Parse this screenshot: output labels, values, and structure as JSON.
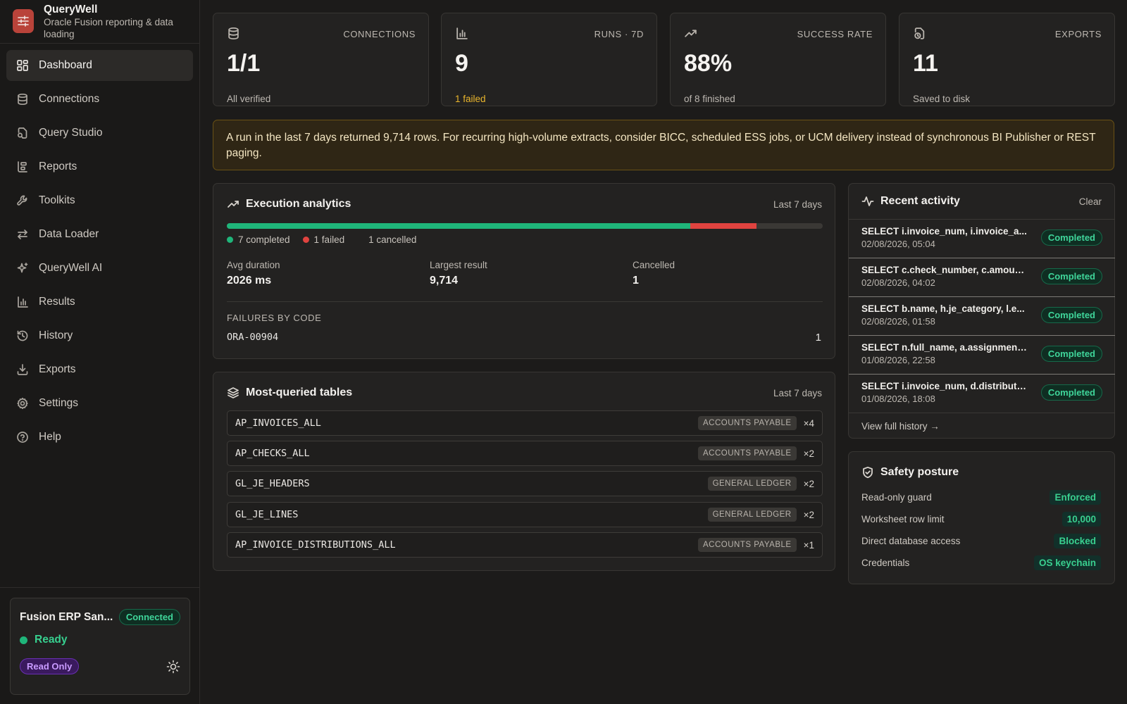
{
  "app": {
    "name": "QueryWell",
    "subtitle": "Oracle Fusion reporting & data loading"
  },
  "nav": [
    {
      "label": "Dashboard",
      "icon": "dashboard-icon",
      "active": true
    },
    {
      "label": "Connections",
      "icon": "database-icon"
    },
    {
      "label": "Query Studio",
      "icon": "query-file-icon"
    },
    {
      "label": "Reports",
      "icon": "reports-icon"
    },
    {
      "label": "Toolkits",
      "icon": "wrench-icon"
    },
    {
      "label": "Data Loader",
      "icon": "arrows-swap-icon"
    },
    {
      "label": "QueryWell AI",
      "icon": "sparkle-icon"
    },
    {
      "label": "Results",
      "icon": "bar-chart-icon"
    },
    {
      "label": "History",
      "icon": "history-icon"
    },
    {
      "label": "Exports",
      "icon": "download-icon"
    },
    {
      "label": "Settings",
      "icon": "gear-icon"
    },
    {
      "label": "Help",
      "icon": "help-icon"
    }
  ],
  "connection": {
    "name": "Fusion ERP San...",
    "status_badge": "Connected",
    "state": "Ready",
    "mode": "Read Only"
  },
  "stats": [
    {
      "label": "CONNECTIONS",
      "value": "1/1",
      "sub": "All verified",
      "icon": "database-icon"
    },
    {
      "label": "RUNS · 7D",
      "value": "9",
      "sub": "1 failed",
      "icon": "bar-chart-icon"
    },
    {
      "label": "SUCCESS RATE",
      "value": "88%",
      "sub": "of 8 finished",
      "icon": "trend-up-icon"
    },
    {
      "label": "EXPORTS",
      "value": "11",
      "sub": "Saved to disk",
      "icon": "file-clock-icon"
    }
  ],
  "banner": "A run in the last 7 days returned 9,714 rows. For recurring high-volume extracts, consider BICC, scheduled ESS jobs, or UCM delivery instead of synchronous BI Publisher or REST paging.",
  "analytics": {
    "title": "Execution analytics",
    "period": "Last 7 days",
    "completed": 7,
    "failed": 1,
    "cancelled_count": 1,
    "legend_completed": "7 completed",
    "legend_failed": "1 failed",
    "legend_cancelled": "1 cancelled",
    "avg_label": "Avg duration",
    "avg_value": "2026 ms",
    "largest_label": "Largest result",
    "largest_value": "9,714",
    "cancelled_label": "Cancelled",
    "cancelled_value": "1",
    "failures_heading": "FAILURES BY CODE",
    "failures": [
      {
        "code": "ORA-00904",
        "count": "1"
      }
    ],
    "colors": {
      "completed": "#1fb57a",
      "failed": "#e0433f",
      "track": "#3a3835"
    }
  },
  "tables": {
    "title": "Most-queried tables",
    "period": "Last 7 days",
    "rows": [
      {
        "name": "AP_INVOICES_ALL",
        "module": "ACCOUNTS PAYABLE",
        "count": "×4"
      },
      {
        "name": "AP_CHECKS_ALL",
        "module": "ACCOUNTS PAYABLE",
        "count": "×2"
      },
      {
        "name": "GL_JE_HEADERS",
        "module": "GENERAL LEDGER",
        "count": "×2"
      },
      {
        "name": "GL_JE_LINES",
        "module": "GENERAL LEDGER",
        "count": "×2"
      },
      {
        "name": "AP_INVOICE_DISTRIBUTIONS_ALL",
        "module": "ACCOUNTS PAYABLE",
        "count": "×1"
      }
    ]
  },
  "activity": {
    "title": "Recent activity",
    "clear_label": "Clear",
    "view_all": "View full history →",
    "items": [
      {
        "sql": "SELECT i.invoice_num, i.invoice_a...",
        "time": "02/08/2026, 05:04",
        "status": "Completed"
      },
      {
        "sql": "SELECT c.check_number, c.amoun...",
        "time": "02/08/2026, 04:02",
        "status": "Completed"
      },
      {
        "sql": "SELECT b.name, h.je_category, l.e...",
        "time": "02/08/2026, 01:58",
        "status": "Completed"
      },
      {
        "sql": "SELECT n.full_name, a.assignment...",
        "time": "01/08/2026, 22:58",
        "status": "Completed"
      },
      {
        "sql": "SELECT i.invoice_num, d.distributi...",
        "time": "01/08/2026, 18:08",
        "status": "Completed"
      }
    ]
  },
  "safety": {
    "title": "Safety posture",
    "rows": [
      {
        "label": "Read-only guard",
        "value": "Enforced"
      },
      {
        "label": "Worksheet row limit",
        "value": "10,000"
      },
      {
        "label": "Direct database access",
        "value": "Blocked"
      },
      {
        "label": "Credentials",
        "value": "OS keychain"
      }
    ]
  }
}
